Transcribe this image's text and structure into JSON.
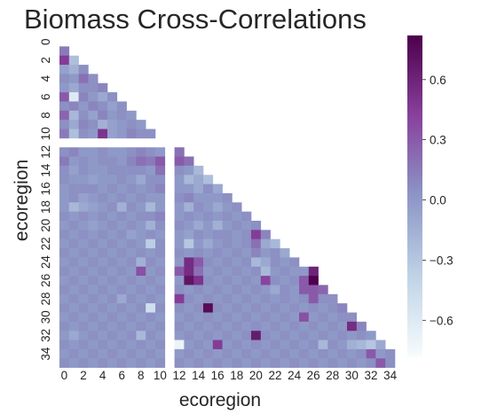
{
  "chart_data": {
    "type": "heatmap",
    "title": "Biomass Cross-Correlations",
    "xlabel": "ecoregion",
    "ylabel": "ecoregion",
    "mask": "upper-triangle",
    "size": 36,
    "x_tick_labels": [
      "0",
      "2",
      "4",
      "6",
      "8",
      "10",
      "12",
      "14",
      "16",
      "18",
      "20",
      "22",
      "24",
      "26",
      "28",
      "30",
      "32",
      "34"
    ],
    "y_tick_labels": [
      "0",
      "2",
      "4",
      "6",
      "8",
      "10",
      "12",
      "14",
      "16",
      "18",
      "20",
      "22",
      "24",
      "26",
      "28",
      "30",
      "32",
      "34"
    ],
    "colorbar": {
      "vmin": -0.78,
      "vmax": 0.82,
      "ticks": [
        0.6,
        0.3,
        0.0,
        -0.3,
        -0.6
      ],
      "tick_labels": [
        "0.6",
        "0.3",
        "0.0",
        "−0.3",
        "−0.6"
      ],
      "colormap": "BuPu",
      "color_stops": [
        "#f7fcfd",
        "#bfd3e6",
        "#8c96c6",
        "#88419d",
        "#4d004b"
      ]
    },
    "missing_rows": [
      11
    ],
    "missing_cols": [
      11
    ],
    "value_note": "cells mostly near 0.0; positive outliers (~0.5-0.8) at rows 25-31 near cols 14-16 and 26-27",
    "rows": [
      [],
      [
        0.15
      ],
      [
        0.45,
        -0.25
      ],
      [
        -0.05,
        -0.15,
        0.05
      ],
      [
        0.05,
        0.0,
        0.2,
        0.05
      ],
      [
        0.0,
        -0.1,
        0.05,
        0.05,
        0.1
      ],
      [
        0.3,
        -0.6,
        0.1,
        0.0,
        -0.1,
        0.05
      ],
      [
        0.05,
        0.1,
        0.0,
        0.1,
        0.05,
        -0.05,
        0.05
      ],
      [
        0.25,
        -0.2,
        0.05,
        -0.05,
        0.1,
        0.0,
        0.05,
        0.0
      ],
      [
        0.05,
        -0.1,
        0.1,
        0.05,
        -0.15,
        -0.05,
        0.0,
        0.05,
        0.0
      ],
      [
        0.15,
        -0.25,
        0.05,
        0.0,
        0.5,
        -0.05,
        0.0,
        0.1,
        0.05,
        0.05
      ],
      [],
      [
        0.05,
        0.1,
        0.0,
        0.0,
        0.05,
        0.0,
        0.0,
        0.05,
        0.1,
        0.05,
        0.0,
        null,
        0.2
      ],
      [
        0.15,
        0.0,
        0.05,
        0.0,
        0.05,
        0.05,
        0.0,
        0.1,
        0.2,
        0.15,
        0.3,
        null,
        0.3,
        0.2
      ],
      [
        0.05,
        -0.05,
        0.05,
        0.0,
        0.0,
        0.05,
        0.05,
        0.05,
        0.05,
        0.0,
        0.2,
        null,
        0.05,
        0.0,
        -0.2
      ],
      [
        0.05,
        0.0,
        0.0,
        -0.05,
        0.0,
        0.0,
        0.05,
        0.0,
        -0.1,
        0.05,
        0.05,
        null,
        0.0,
        -0.2,
        -0.1,
        -0.25
      ],
      [
        0.0,
        0.05,
        0.05,
        0.05,
        0.0,
        0.05,
        0.0,
        0.05,
        0.0,
        0.05,
        0.1,
        null,
        0.0,
        0.0,
        -0.1,
        0.05,
        -0.1
      ],
      [
        0.0,
        0.05,
        -0.05,
        0.0,
        0.05,
        0.0,
        0.05,
        0.0,
        0.05,
        0.0,
        0.0,
        null,
        0.05,
        0.1,
        0.0,
        0.0,
        0.0,
        0.05
      ],
      [
        0.0,
        -0.2,
        -0.1,
        -0.05,
        0.0,
        0.05,
        -0.15,
        0.05,
        0.0,
        -0.2,
        0.0,
        null,
        0.0,
        -0.15,
        0.05,
        0.0,
        -0.1,
        0.0,
        0.05
      ],
      [
        0.05,
        0.0,
        0.05,
        0.0,
        0.05,
        0.0,
        0.05,
        0.0,
        0.05,
        0.05,
        0.1,
        null,
        0.0,
        0.05,
        0.0,
        0.05,
        0.0,
        0.05,
        0.0,
        0.05
      ],
      [
        0.0,
        0.05,
        0.0,
        -0.05,
        0.0,
        0.05,
        0.0,
        0.05,
        0.0,
        -0.15,
        0.05,
        null,
        0.05,
        0.0,
        -0.1,
        0.0,
        -0.15,
        0.0,
        0.05,
        0.0,
        0.05
      ],
      [
        0.05,
        0.0,
        0.05,
        0.0,
        0.05,
        0.0,
        0.05,
        -0.05,
        0.0,
        0.05,
        0.0,
        null,
        0.0,
        -0.05,
        0.05,
        0.0,
        0.05,
        0.05,
        0.0,
        0.05,
        0.45,
        0.1
      ],
      [
        0.0,
        0.05,
        0.0,
        0.05,
        0.0,
        0.05,
        0.0,
        0.05,
        0.0,
        -0.35,
        0.05,
        null,
        0.0,
        -0.3,
        0.0,
        -0.1,
        0.0,
        0.05,
        0.0,
        0.05,
        0.2,
        -0.1,
        -0.2
      ],
      [
        0.05,
        0.0,
        0.05,
        0.0,
        0.05,
        0.0,
        0.05,
        0.0,
        0.05,
        0.0,
        0.05,
        null,
        0.05,
        0.0,
        0.05,
        0.0,
        0.05,
        0.0,
        0.05,
        0.0,
        0.1,
        0.0,
        0.05,
        -0.1
      ],
      [
        0.0,
        0.05,
        0.0,
        0.05,
        0.0,
        0.05,
        0.0,
        0.05,
        -0.15,
        0.05,
        0.0,
        null,
        0.0,
        0.55,
        0.3,
        0.05,
        0.0,
        0.05,
        0.0,
        0.05,
        -0.2,
        -0.1,
        0.05,
        0.0,
        0.05
      ],
      [
        0.05,
        0.0,
        0.05,
        0.0,
        0.05,
        0.0,
        0.05,
        0.0,
        0.35,
        0.0,
        0.05,
        null,
        0.3,
        0.55,
        0.2,
        0.0,
        0.05,
        0.0,
        0.05,
        0.0,
        0.05,
        -0.2,
        0.0,
        0.05,
        0.0,
        0.0,
        0.6
      ],
      [
        0.0,
        0.05,
        0.0,
        0.05,
        0.0,
        0.05,
        0.0,
        0.05,
        0.0,
        0.05,
        0.0,
        null,
        0.0,
        0.7,
        0.5,
        0.05,
        0.0,
        0.05,
        0.0,
        0.05,
        0.0,
        0.4,
        0.05,
        0.0,
        0.05,
        0.3,
        0.82
      ],
      [
        0.05,
        0.0,
        0.05,
        0.0,
        0.05,
        0.0,
        0.05,
        0.0,
        0.05,
        0.0,
        0.05,
        null,
        0.05,
        0.0,
        0.05,
        0.0,
        0.05,
        0.0,
        0.05,
        0.0,
        0.05,
        0.0,
        -0.1,
        0.05,
        0.0,
        0.3,
        0.3,
        0.25
      ],
      [
        0.0,
        0.05,
        0.0,
        0.05,
        0.0,
        0.05,
        -0.1,
        0.05,
        0.0,
        0.05,
        0.0,
        null,
        0.45,
        0.05,
        0.0,
        0.05,
        0.0,
        0.05,
        0.0,
        0.05,
        0.0,
        0.05,
        0.0,
        0.05,
        0.0,
        0.05,
        0.3,
        0.05,
        0.05
      ],
      [
        0.05,
        0.0,
        0.05,
        0.0,
        0.05,
        0.0,
        0.05,
        0.0,
        0.05,
        -0.5,
        0.05,
        null,
        0.05,
        0.0,
        0.05,
        0.75,
        0.05,
        0.0,
        0.05,
        0.0,
        0.05,
        0.0,
        0.05,
        0.0,
        0.05,
        0.0,
        0.05,
        0.0,
        0.05,
        0.1
      ],
      [
        0.0,
        0.05,
        0.0,
        0.05,
        0.0,
        0.05,
        0.0,
        0.05,
        0.0,
        0.05,
        0.0,
        null,
        0.0,
        0.05,
        0.0,
        0.05,
        0.0,
        0.05,
        0.0,
        0.05,
        0.0,
        0.05,
        0.0,
        0.05,
        0.0,
        0.35,
        0.0,
        0.05,
        0.0,
        0.05,
        0.05
      ],
      [
        0.05,
        0.0,
        0.05,
        0.0,
        0.05,
        0.0,
        0.05,
        0.0,
        0.05,
        0.0,
        0.05,
        null,
        0.05,
        0.0,
        0.05,
        0.0,
        0.05,
        0.0,
        0.05,
        0.0,
        0.05,
        0.0,
        0.05,
        0.0,
        0.05,
        0.0,
        0.05,
        0.0,
        0.05,
        0.0,
        0.55,
        0.1
      ],
      [
        0.0,
        -0.1,
        0.0,
        0.05,
        0.0,
        0.05,
        0.0,
        0.05,
        -0.2,
        0.05,
        0.0,
        null,
        0.0,
        0.05,
        0.0,
        0.05,
        0.0,
        0.05,
        0.0,
        0.05,
        0.65,
        0.05,
        0.0,
        0.05,
        0.0,
        0.05,
        0.0,
        0.05,
        0.0,
        0.05,
        0.0,
        0.05,
        0.0
      ],
      [
        0.05,
        0.0,
        0.05,
        0.0,
        0.05,
        0.0,
        0.05,
        0.0,
        0.05,
        0.0,
        0.05,
        null,
        -0.7,
        0.0,
        0.05,
        0.0,
        0.45,
        0.0,
        0.05,
        0.0,
        0.05,
        0.0,
        0.05,
        0.0,
        0.05,
        0.0,
        0.05,
        -0.2,
        0.05,
        0.0,
        -0.15,
        -0.2,
        -0.3,
        -0.1
      ],
      [
        0.0,
        0.05,
        0.0,
        0.05,
        0.0,
        0.05,
        0.0,
        0.05,
        0.0,
        0.05,
        0.0,
        null,
        0.0,
        0.05,
        0.0,
        0.05,
        0.0,
        0.05,
        0.0,
        0.05,
        0.0,
        0.05,
        0.0,
        0.05,
        0.0,
        0.05,
        0.0,
        0.05,
        0.0,
        0.05,
        0.0,
        0.05,
        0.3,
        0.0,
        0.05
      ],
      [
        0.05,
        0.0,
        0.05,
        0.0,
        0.05,
        0.0,
        0.05,
        0.0,
        0.05,
        0.0,
        0.05,
        null,
        0.05,
        0.0,
        0.05,
        0.0,
        0.05,
        0.0,
        0.05,
        0.0,
        0.05,
        0.0,
        0.05,
        0.0,
        0.05,
        0.0,
        0.05,
        0.0,
        0.05,
        0.0,
        0.05,
        0.0,
        0.05,
        0.3,
        0.05
      ]
    ]
  }
}
